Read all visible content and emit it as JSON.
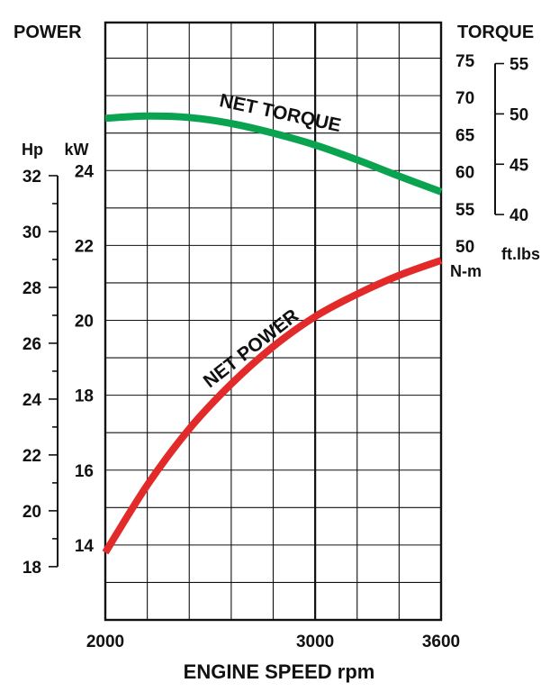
{
  "chart_data": {
    "type": "line",
    "title": "",
    "left_header": "POWER",
    "right_header": "TORQUE",
    "xlabel": "ENGINE SPEED rpm",
    "x_ticks": [
      "2000",
      "3000",
      "3600"
    ],
    "xlim": [
      2000,
      3600
    ],
    "grid": true,
    "axes": {
      "kw": {
        "unit": "kW",
        "range": [
          12,
          28
        ],
        "ticks": [
          "14",
          "16",
          "18",
          "20",
          "22",
          "24"
        ]
      },
      "hp": {
        "unit": "Hp",
        "ticks": [
          "18",
          "20",
          "22",
          "24",
          "26",
          "28",
          "30",
          "32"
        ]
      },
      "nm": {
        "unit": "N-m",
        "range": [
          50,
          75
        ],
        "ticks": [
          "50",
          "55",
          "60",
          "65",
          "70",
          "75"
        ]
      },
      "ftlbs": {
        "unit": "ft.lbs",
        "ticks": [
          "40",
          "45",
          "50",
          "55"
        ]
      }
    },
    "series": [
      {
        "name": "NET TORQUE",
        "axis": "nm",
        "color": "#0aa34f",
        "x": [
          2000,
          2200,
          2400,
          2600,
          2800,
          3000,
          3200,
          3400,
          3600
        ],
        "y": [
          67.2,
          67.5,
          67.3,
          66.5,
          65.2,
          63.6,
          61.6,
          59.4,
          57.3
        ]
      },
      {
        "name": "NET POWER",
        "axis": "kw",
        "color": "#e32a2a",
        "x": [
          2000,
          2200,
          2400,
          2600,
          2800,
          3000,
          3200,
          3400,
          3600
        ],
        "y": [
          13.8,
          15.6,
          17.1,
          18.3,
          19.3,
          20.1,
          20.7,
          21.2,
          21.6
        ]
      }
    ]
  }
}
